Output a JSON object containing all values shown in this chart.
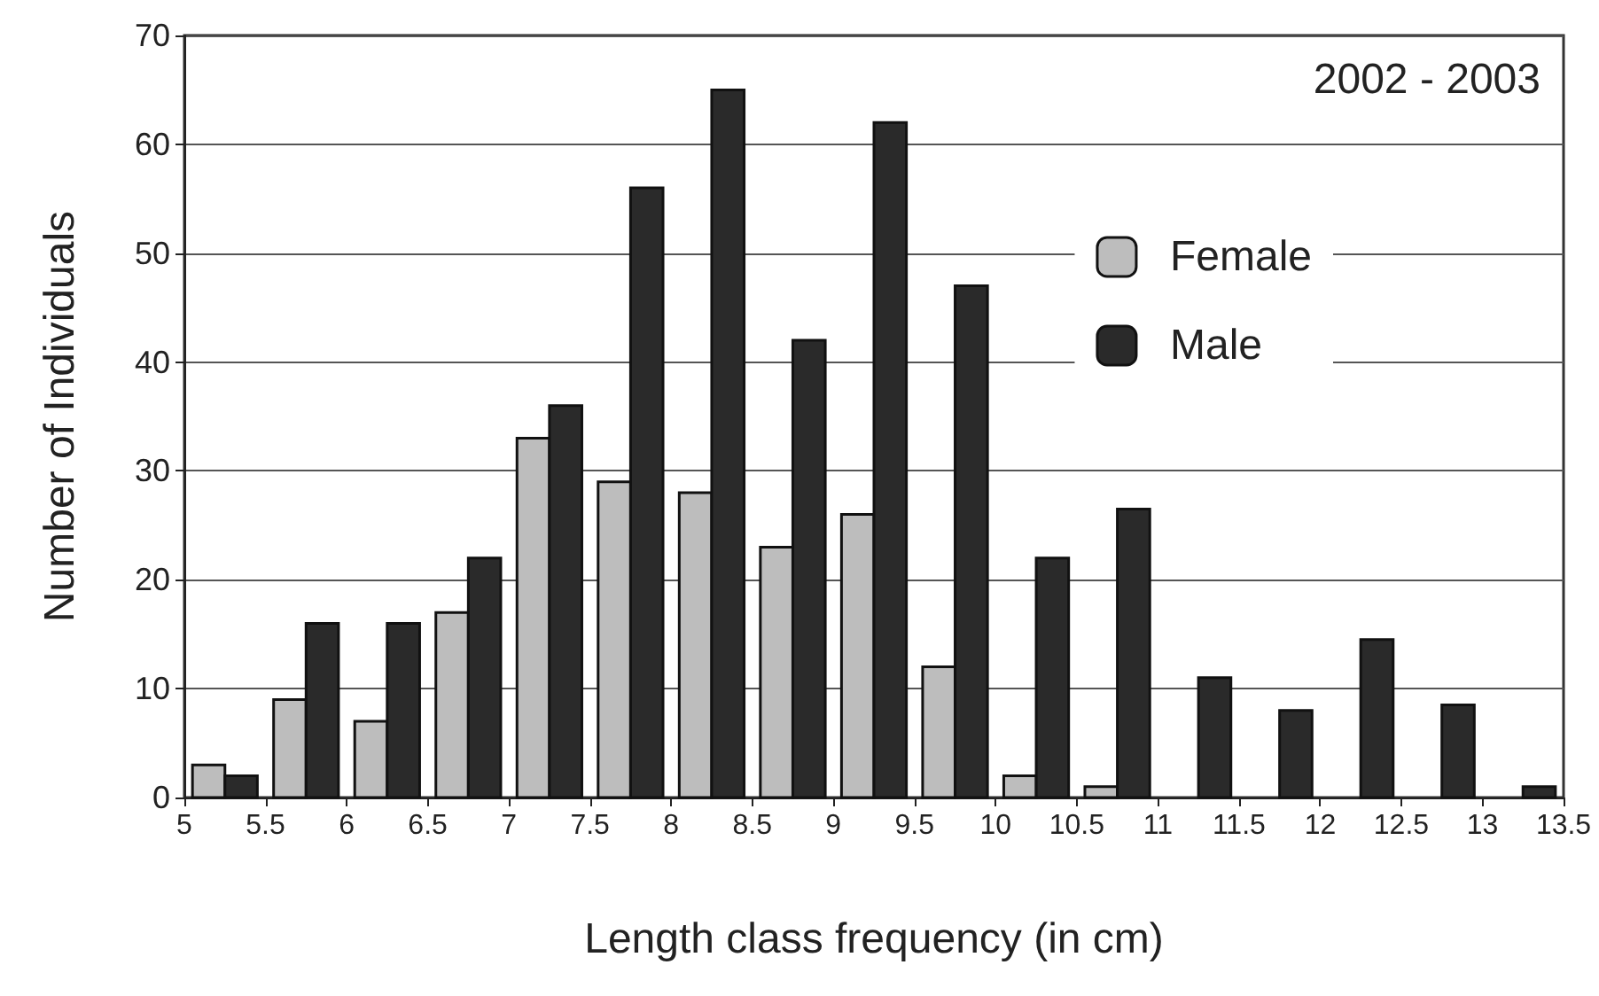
{
  "chart_data": {
    "type": "histogram",
    "xlabel": "Length class frequency (in cm)",
    "ylabel": "Number of Individuals",
    "annotations": [
      "2002 - 2003"
    ],
    "bins": [
      5,
      5.5,
      6,
      6.5,
      7,
      7.5,
      8,
      8.5,
      9,
      9.5,
      10,
      10.5,
      11,
      11.5,
      12,
      12.5,
      13,
      13.5
    ],
    "series": [
      {
        "name": "Female",
        "color": "#bdbdbd",
        "values": [
          3,
          9,
          7,
          17,
          33,
          29,
          28,
          23,
          26,
          12,
          2,
          1,
          0,
          0,
          0,
          0,
          0
        ]
      },
      {
        "name": "Male",
        "color": "#2a2a2a",
        "values": [
          2,
          16,
          16,
          22,
          36,
          56,
          65,
          42,
          62,
          47,
          22,
          26.5,
          11,
          8,
          14.5,
          8.5,
          1
        ]
      }
    ],
    "xlim": [
      5,
      13.5
    ],
    "xticks": [
      5,
      5.5,
      6,
      6.5,
      7,
      7.5,
      8,
      8.5,
      9,
      9.5,
      10,
      10.5,
      11,
      11.5,
      12,
      12.5,
      13,
      13.5
    ],
    "ylim": [
      0,
      70
    ],
    "yticks": [
      0,
      10,
      20,
      30,
      40,
      50,
      60,
      70
    ],
    "grid": "y",
    "legend": "top right"
  }
}
